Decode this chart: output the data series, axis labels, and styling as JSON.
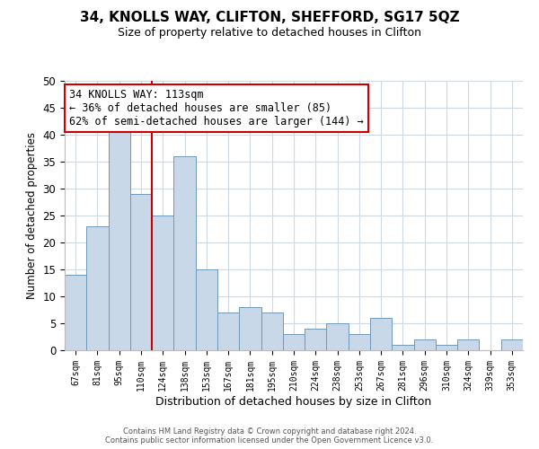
{
  "title": "34, KNOLLS WAY, CLIFTON, SHEFFORD, SG17 5QZ",
  "subtitle": "Size of property relative to detached houses in Clifton",
  "xlabel": "Distribution of detached houses by size in Clifton",
  "ylabel": "Number of detached properties",
  "footer_line1": "Contains HM Land Registry data © Crown copyright and database right 2024.",
  "footer_line2": "Contains public sector information licensed under the Open Government Licence v3.0.",
  "bar_labels": [
    "67sqm",
    "81sqm",
    "95sqm",
    "110sqm",
    "124sqm",
    "138sqm",
    "153sqm",
    "167sqm",
    "181sqm",
    "195sqm",
    "210sqm",
    "224sqm",
    "238sqm",
    "253sqm",
    "267sqm",
    "281sqm",
    "296sqm",
    "310sqm",
    "324sqm",
    "339sqm",
    "353sqm"
  ],
  "bar_values": [
    14,
    23,
    41,
    29,
    25,
    36,
    15,
    7,
    8,
    7,
    3,
    4,
    5,
    3,
    6,
    1,
    2,
    1,
    2,
    0,
    2
  ],
  "bar_color": "#c8d8e8",
  "bar_edge_color": "#7098b8",
  "vline_x": 3.5,
  "vline_color": "#cc0000",
  "ylim": [
    0,
    50
  ],
  "yticks": [
    0,
    5,
    10,
    15,
    20,
    25,
    30,
    35,
    40,
    45,
    50
  ],
  "annotation_title": "34 KNOLLS WAY: 113sqm",
  "annotation_line1": "← 36% of detached houses are smaller (85)",
  "annotation_line2": "62% of semi-detached houses are larger (144) →",
  "annotation_box_color": "#ffffff",
  "annotation_box_edge": "#cc0000",
  "background_color": "#ffffff",
  "grid_color": "#d0d8e0",
  "title_fontsize": 11,
  "subtitle_fontsize": 9
}
